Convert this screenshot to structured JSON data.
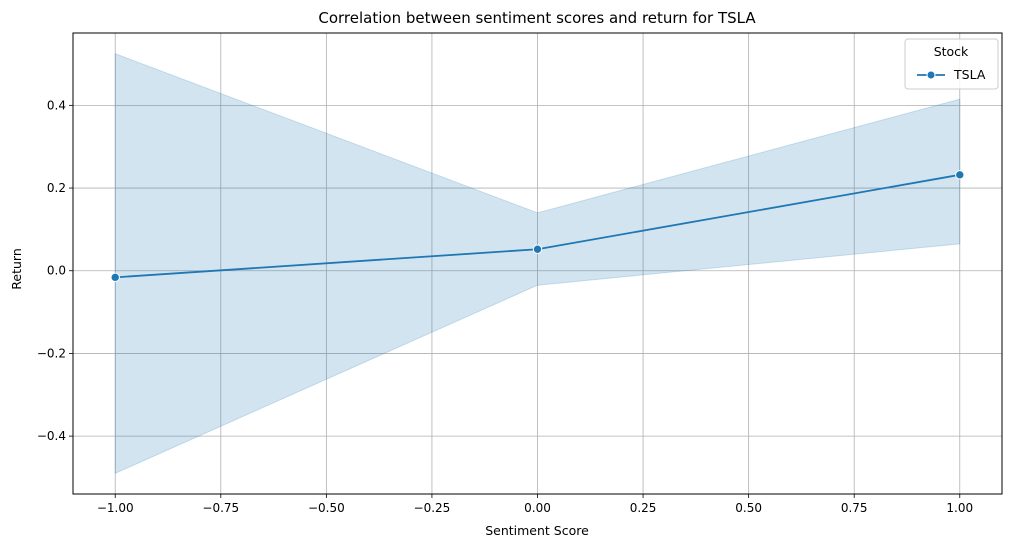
{
  "chart_data": {
    "type": "line",
    "title": "Correlation between sentiment scores and return for TSLA",
    "xlabel": "Sentiment Score",
    "ylabel": "Return",
    "xlim": [
      -1.1,
      1.1
    ],
    "ylim": [
      -0.54,
      0.575
    ],
    "x_ticks": [
      -1.0,
      -0.75,
      -0.5,
      -0.25,
      0.0,
      0.25,
      0.5,
      0.75,
      1.0
    ],
    "x_tick_labels": [
      "−1.00",
      "−0.75",
      "−0.50",
      "−0.25",
      "0.00",
      "0.25",
      "0.50",
      "0.75",
      "1.00"
    ],
    "y_ticks": [
      -0.4,
      -0.2,
      0.0,
      0.2,
      0.4
    ],
    "y_tick_labels": [
      "−0.4",
      "−0.2",
      "0.0",
      "0.2",
      "0.4"
    ],
    "grid": true,
    "legend": {
      "title": "Stock",
      "placement": "top-right"
    },
    "series": [
      {
        "name": "TSLA",
        "color": "#1f77b4",
        "x": [
          -1.0,
          0.0,
          1.0
        ],
        "y": [
          -0.016,
          0.052,
          0.232
        ],
        "ci_lower": [
          -0.49,
          -0.035,
          0.065
        ],
        "ci_upper": [
          0.525,
          0.14,
          0.415
        ]
      }
    ]
  }
}
